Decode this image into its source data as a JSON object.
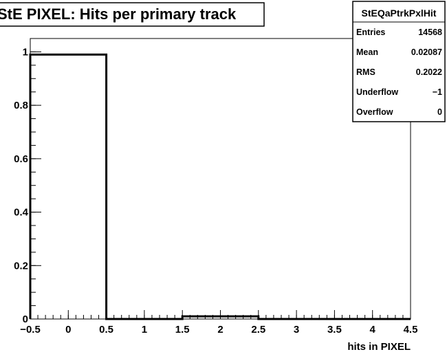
{
  "chart_data": {
    "type": "bar",
    "title": "StE PIXEL: Hits per primary track",
    "xlabel": "hits in PIXEL",
    "ylabel": "",
    "xlim": [
      -0.5,
      4.5
    ],
    "ylim": [
      0,
      1.05
    ],
    "grid": false,
    "bin_width": 1,
    "bins": [
      {
        "low": -0.5,
        "high": 0.5,
        "value": 0.99
      },
      {
        "low": 0.5,
        "high": 1.5,
        "value": 0.0
      },
      {
        "low": 1.5,
        "high": 2.5,
        "value": 0.01
      },
      {
        "low": 2.5,
        "high": 3.5,
        "value": 0.0
      },
      {
        "low": 3.5,
        "high": 4.5,
        "value": 0.0
      }
    ],
    "x_ticks": [
      {
        "value": -0.5,
        "label": "−0.5"
      },
      {
        "value": 0,
        "label": "0"
      },
      {
        "value": 0.5,
        "label": "0.5"
      },
      {
        "value": 1,
        "label": "1"
      },
      {
        "value": 1.5,
        "label": "1.5"
      },
      {
        "value": 2,
        "label": "2"
      },
      {
        "value": 2.5,
        "label": "2.5"
      },
      {
        "value": 3,
        "label": "3"
      },
      {
        "value": 3.5,
        "label": "3.5"
      },
      {
        "value": 4,
        "label": "4"
      },
      {
        "value": 4.5,
        "label": "4.5"
      }
    ],
    "y_ticks": [
      {
        "value": 0,
        "label": "0"
      },
      {
        "value": 0.2,
        "label": "0.2"
      },
      {
        "value": 0.4,
        "label": "0.4"
      },
      {
        "value": 0.6,
        "label": "0.6"
      },
      {
        "value": 0.8,
        "label": "0.8"
      },
      {
        "value": 1,
        "label": "1"
      }
    ],
    "stats_box": {
      "title": "StEQaPtrkPxlHit",
      "placement": "top-right",
      "rows": [
        {
          "label": "Entries",
          "value": "14568"
        },
        {
          "label": "Mean",
          "value": "0.02087"
        },
        {
          "label": "RMS",
          "value": "0.2022"
        },
        {
          "label": "Underflow",
          "value": "−1"
        },
        {
          "label": "Overflow",
          "value": "0"
        }
      ]
    }
  },
  "colors": {
    "line": "#000000",
    "background": "#ffffff"
  }
}
